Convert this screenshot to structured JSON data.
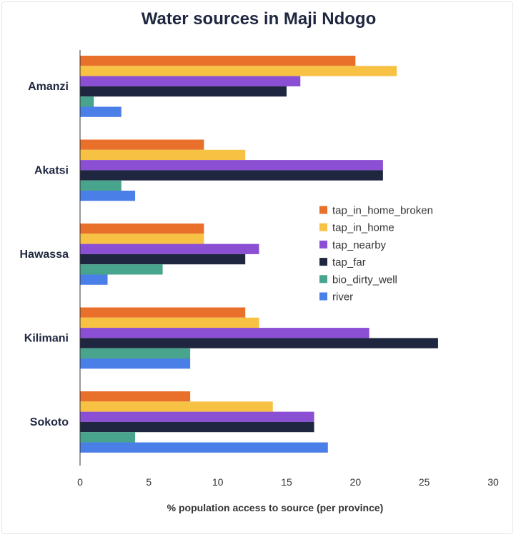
{
  "chart_data": {
    "type": "bar",
    "orientation": "horizontal",
    "title": "Water sources in Maji Ndogo",
    "xlabel": "% population access to source (per province)",
    "ylabel": "",
    "xlim": [
      0,
      30
    ],
    "xticks": [
      0,
      5,
      10,
      15,
      20,
      25,
      30
    ],
    "grid": false,
    "legend_position": "right",
    "categories": [
      "Amanzi",
      "Akatsi",
      "Hawassa",
      "Kilimani",
      "Sokoto"
    ],
    "series": [
      {
        "name": "tap_in_home_broken",
        "color": "#E8702A",
        "values": [
          20,
          9,
          9,
          12,
          8
        ]
      },
      {
        "name": "tap_in_home",
        "color": "#F7C244",
        "values": [
          23,
          12,
          9,
          13,
          14
        ]
      },
      {
        "name": "tap_nearby",
        "color": "#8A4FD3",
        "values": [
          16,
          22,
          13,
          21,
          17
        ]
      },
      {
        "name": "tap_far",
        "color": "#1F2740",
        "values": [
          15,
          22,
          12,
          26,
          17
        ]
      },
      {
        "name": "bio_dirty_well",
        "color": "#48A48C",
        "values": [
          1,
          3,
          6,
          8,
          4
        ]
      },
      {
        "name": "river",
        "color": "#4A7FE8",
        "values": [
          3,
          4,
          2,
          8,
          18
        ]
      }
    ]
  }
}
